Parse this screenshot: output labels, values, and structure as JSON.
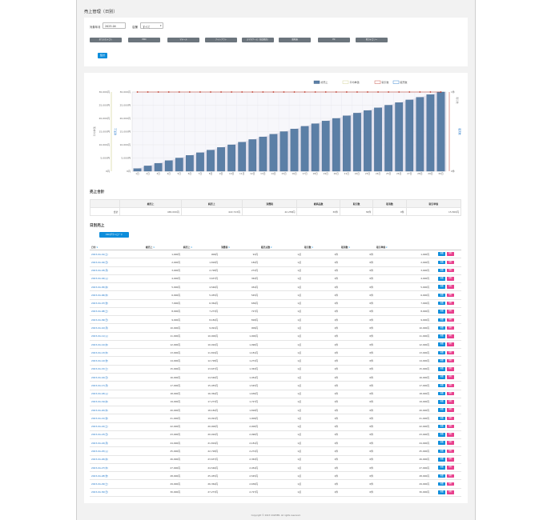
{
  "page": {
    "title": "売上管理（日別）",
    "footer": "Copyright © 2023 CASHIER. All rights reserved."
  },
  "filter": {
    "month_label": "対象年月",
    "month_value": "2023-04",
    "store_label": "店舗",
    "store_value": "すべて",
    "category_buttons": [
      "全てのカテゴリ",
      "PRO",
      "マテール",
      "ナイトアウト",
      "スマホケース（単品販売）",
      "脱毛器",
      "EC",
      "他カテゴリー"
    ],
    "aggregate_label": "集計"
  },
  "chart_data": {
    "type": "bar",
    "legend": [
      "総売上",
      "平均単価",
      "取引数",
      "販売数"
    ],
    "colors": {
      "bar": "#5b7fa6",
      "bar_border": "#3e5f86",
      "line_red": "#c0392b",
      "line_blue": "#1a73c8",
      "area": "#d8d8e8"
    },
    "categories": [
      "1日",
      "2日",
      "3日",
      "4日",
      "5日",
      "6日",
      "7日",
      "8日",
      "9日",
      "10日",
      "11日",
      "12日",
      "13日",
      "14日",
      "15日",
      "16日",
      "17日",
      "18日",
      "19日",
      "20日",
      "21日",
      "22日",
      "23日",
      "24日",
      "25日",
      "26日",
      "27日",
      "28日",
      "29日",
      "30日"
    ],
    "y_left_outer_ticks": [
      "30,000円",
      "25,000円",
      "20,000円",
      "15,000円",
      "10,000円",
      "5,000円",
      "0円"
    ],
    "y_left_inner_ticks": [
      "30,000円",
      "25,000円",
      "20,000円",
      "15,000円",
      "10,000円",
      "5,000円",
      "0円"
    ],
    "y_left_outer_label": "平均単価",
    "y_left_inner_label": "総売上",
    "y_right_ticks": [
      "1件",
      "0件"
    ],
    "y_right_label": "取引数",
    "y_right_outer_ticks": [
      "1点",
      "0点"
    ],
    "y_right_outer_label": "販売数",
    "ylim": [
      0,
      30000
    ],
    "series": [
      {
        "name": "総売上",
        "values": [
          1000,
          2000,
          3000,
          4000,
          5000,
          6000,
          7000,
          8000,
          9000,
          10000,
          11000,
          12000,
          13000,
          14000,
          15000,
          16000,
          17000,
          18000,
          19000,
          20000,
          21000,
          22000,
          23000,
          24000,
          25000,
          26000,
          27000,
          28000,
          29000,
          30000
        ]
      },
      {
        "name": "平均単価",
        "values": [
          1000,
          2000,
          3000,
          4000,
          5000,
          6000,
          7000,
          8000,
          9000,
          10000,
          11000,
          12000,
          13000,
          14000,
          15000,
          16000,
          17000,
          18000,
          19000,
          20000,
          21000,
          22000,
          23000,
          24000,
          25000,
          26000,
          27000,
          28000,
          29000,
          30000
        ]
      },
      {
        "name": "取引数",
        "values": [
          1,
          1,
          1,
          1,
          1,
          1,
          1,
          1,
          1,
          1,
          1,
          1,
          1,
          1,
          1,
          1,
          1,
          1,
          1,
          1,
          1,
          1,
          1,
          1,
          1,
          1,
          1,
          1,
          1,
          1
        ]
      }
    ]
  },
  "summary": {
    "title": "売上合計",
    "headers": [
      "",
      "総売上",
      "純売上",
      "消費税",
      "総商品数",
      "取引数",
      "取消数",
      "取引単価"
    ],
    "row": [
      "合計",
      "465,000円",
      "422,743円",
      "42,258円",
      "30件",
      "30件",
      "0件",
      "15,500円"
    ]
  },
  "daily": {
    "title": "日別売上",
    "csv_label": "CSVダウンロード",
    "headers": [
      "日付",
      "総売上",
      "純売上",
      "消費税",
      "販売点数",
      "取引数",
      "取消数",
      "取引単価",
      ""
    ],
    "edit_label": "編集",
    "delete_label": "削除",
    "rows": [
      [
        "2023-04-01(土)",
        "1,000円",
        "909円",
        "91円",
        "1点",
        "1件",
        "0件",
        "1,000円"
      ],
      [
        "2023-04-02(日)",
        "2,000円",
        "1,818円",
        "182円",
        "1点",
        "1件",
        "0件",
        "2,000円"
      ],
      [
        "2023-04-03(月)",
        "3,000円",
        "2,728円",
        "272円",
        "1点",
        "1件",
        "0件",
        "3,000円"
      ],
      [
        "2023-04-04(火)",
        "4,000円",
        "3,637円",
        "363円",
        "1点",
        "1件",
        "0件",
        "4,000円"
      ],
      [
        "2023-04-05(水)",
        "5,000円",
        "4,546円",
        "454円",
        "1点",
        "1件",
        "0件",
        "5,000円"
      ],
      [
        "2023-04-06(木)",
        "6,000円",
        "5,455円",
        "545円",
        "1点",
        "1件",
        "0件",
        "6,000円"
      ],
      [
        "2023-04-07(金)",
        "7,000円",
        "6,364円",
        "636円",
        "1点",
        "1件",
        "0件",
        "7,000円"
      ],
      [
        "2023-04-08(土)",
        "8,000円",
        "7,273円",
        "727円",
        "1点",
        "1件",
        "0件",
        "8,000円"
      ],
      [
        "2023-04-09(日)",
        "9,000円",
        "8,182円",
        "818円",
        "1点",
        "1件",
        "0件",
        "9,000円"
      ],
      [
        "2023-04-10(月)",
        "10,000円",
        "9,091円",
        "909円",
        "1点",
        "1件",
        "0件",
        "10,000円"
      ],
      [
        "2023-04-11(火)",
        "11,000円",
        "10,000円",
        "1,000円",
        "1点",
        "1件",
        "0件",
        "11,000円"
      ],
      [
        "2023-04-12(水)",
        "12,000円",
        "10,910円",
        "1,090円",
        "1点",
        "1件",
        "0件",
        "12,000円"
      ],
      [
        "2023-04-13(木)",
        "13,000円",
        "11,819円",
        "1,181円",
        "1点",
        "1件",
        "0件",
        "13,000円"
      ],
      [
        "2023-04-14(金)",
        "14,000円",
        "12,728円",
        "1,272円",
        "1点",
        "1件",
        "0件",
        "14,000円"
      ],
      [
        "2023-04-15(土)",
        "15,000円",
        "13,637円",
        "1,363円",
        "1点",
        "1件",
        "0件",
        "15,000円"
      ],
      [
        "2023-04-16(日)",
        "16,000円",
        "14,546円",
        "1,454円",
        "1点",
        "1件",
        "0件",
        "16,000円"
      ],
      [
        "2023-04-17(月)",
        "17,000円",
        "15,455円",
        "1,545円",
        "1点",
        "1件",
        "0件",
        "17,000円"
      ],
      [
        "2023-04-18(火)",
        "18,000円",
        "16,364円",
        "1,636円",
        "1点",
        "1件",
        "0件",
        "18,000円"
      ],
      [
        "2023-04-19(水)",
        "19,000円",
        "17,273円",
        "1,727円",
        "1点",
        "1件",
        "0件",
        "19,000円"
      ],
      [
        "2023-04-20(木)",
        "20,000円",
        "18,182円",
        "1,818円",
        "1点",
        "1件",
        "0件",
        "20,000円"
      ],
      [
        "2023-04-21(金)",
        "21,000円",
        "19,091円",
        "1,909円",
        "1点",
        "1件",
        "0件",
        "21,000円"
      ],
      [
        "2023-04-22(土)",
        "22,000円",
        "20,000円",
        "2,000円",
        "1点",
        "1件",
        "0件",
        "22,000円"
      ],
      [
        "2023-04-23(日)",
        "23,000円",
        "20,910円",
        "2,090円",
        "1点",
        "1件",
        "0件",
        "23,000円"
      ],
      [
        "2023-04-24(月)",
        "24,000円",
        "21,819円",
        "2,181円",
        "1点",
        "1件",
        "0件",
        "24,000円"
      ],
      [
        "2023-04-25(火)",
        "25,000円",
        "22,728円",
        "2,272円",
        "1点",
        "1件",
        "0件",
        "25,000円"
      ],
      [
        "2023-04-26(水)",
        "26,000円",
        "23,637円",
        "2,363円",
        "1点",
        "1件",
        "0件",
        "26,000円"
      ],
      [
        "2023-04-27(木)",
        "27,000円",
        "24,546円",
        "2,454円",
        "1点",
        "1件",
        "0件",
        "27,000円"
      ],
      [
        "2023-04-28(金)",
        "28,000円",
        "25,455円",
        "2,545円",
        "1点",
        "1件",
        "0件",
        "28,000円"
      ],
      [
        "2023-04-29(土)",
        "29,000円",
        "26,364円",
        "2,636円",
        "1点",
        "1件",
        "0件",
        "29,000円"
      ],
      [
        "2023-04-30(日)",
        "30,000円",
        "27,273円",
        "2,727円",
        "1点",
        "1件",
        "0件",
        "30,000円"
      ]
    ]
  }
}
